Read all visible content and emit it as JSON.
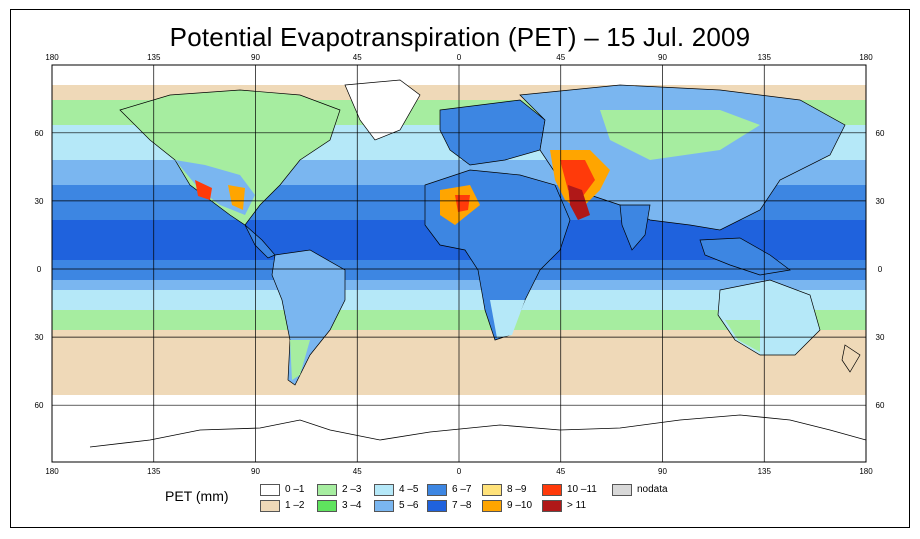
{
  "title": "Potential Evapotranspiration (PET) – 15 Jul. 2009",
  "axes": {
    "lon_ticks": [
      "180",
      "135",
      "90",
      "45",
      "0",
      "45",
      "90",
      "135",
      "180"
    ],
    "lat_ticks": [
      "60",
      "30",
      "0",
      "30",
      "60"
    ]
  },
  "legend": {
    "title": "PET (mm)",
    "classes": [
      {
        "label": "0 –1",
        "color": "#ffffff"
      },
      {
        "label": "1 –2",
        "color": "#efd9b8"
      },
      {
        "label": "2 –3",
        "color": "#a6eda0"
      },
      {
        "label": "3 –4",
        "color": "#5fe35e"
      },
      {
        "label": "4 –5",
        "color": "#b5e8f8"
      },
      {
        "label": "5 –6",
        "color": "#7ab6f0"
      },
      {
        "label": "6 –7",
        "color": "#3d86e2"
      },
      {
        "label": "7 –8",
        "color": "#1f62dd"
      },
      {
        "label": "8 –9",
        "color": "#ffe27a"
      },
      {
        "label": "9 –10",
        "color": "#ffa500"
      },
      {
        "label": "10 –11",
        "color": "#ff3a0a"
      },
      {
        "label": "> 11",
        "color": "#b01818"
      },
      {
        "label": "nodata",
        "color": "#d8d8d8"
      }
    ]
  }
}
